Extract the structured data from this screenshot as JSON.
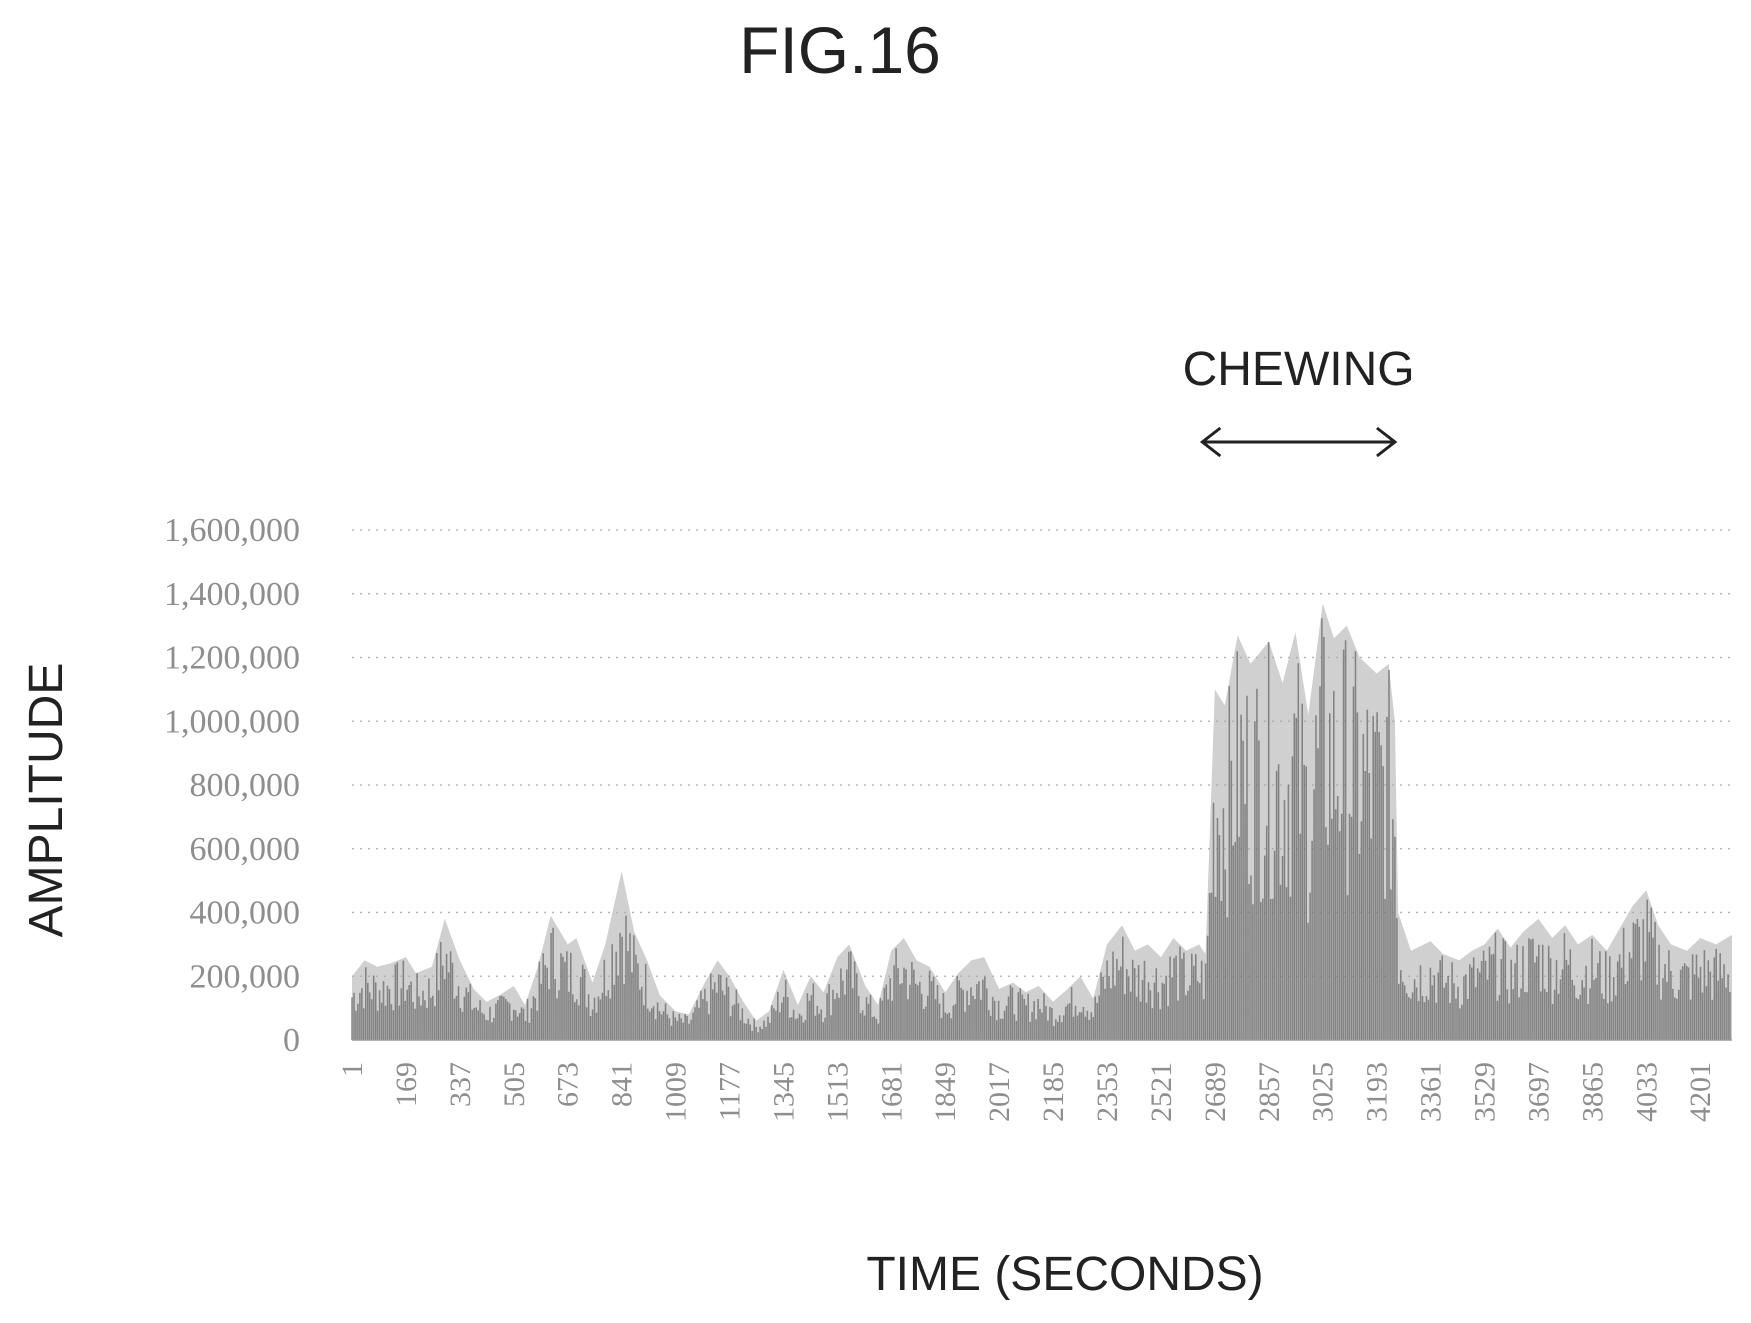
{
  "figure_label": "FIG.16",
  "chart_data": {
    "type": "area",
    "xlabel": "TIME (SECONDS)",
    "ylabel": "AMPLITUDE",
    "ylim": [
      0,
      1600000
    ],
    "yticks": [
      0,
      200000,
      400000,
      600000,
      800000,
      1000000,
      1200000,
      1400000,
      1600000
    ],
    "ytick_labels": [
      "0",
      "200,000",
      "400,000",
      "600,000",
      "800,000",
      "1,000,000",
      "1,200,000",
      "1,400,000",
      "1,600,000"
    ],
    "xticks": [
      1,
      169,
      337,
      505,
      673,
      841,
      1009,
      1177,
      1345,
      1513,
      1681,
      1849,
      2017,
      2185,
      2353,
      2521,
      2689,
      2857,
      3025,
      3193,
      3361,
      3529,
      3697,
      3865,
      4033,
      4201
    ],
    "xlim": [
      1,
      4300
    ],
    "grid": true,
    "legend": "none",
    "color": "#6b6b6b",
    "annotation": {
      "label": "CHEWING",
      "x_start": 2650,
      "x_end": 3250,
      "style": "double-arrow"
    },
    "series": [
      {
        "x": [
          1,
          40,
          80,
          120,
          169,
          200,
          250,
          290,
          337,
          380,
          420,
          460,
          505,
          540,
          580,
          620,
          673,
          700,
          750,
          790,
          841,
          880,
          920,
          960,
          1009,
          1050,
          1100,
          1140,
          1177,
          1220,
          1260,
          1300,
          1345,
          1390,
          1430,
          1470,
          1513,
          1550,
          1600,
          1640,
          1681,
          1720,
          1760,
          1800,
          1849,
          1890,
          1930,
          1970,
          2017,
          2060,
          2100,
          2140,
          2185,
          2230,
          2270,
          2310,
          2353,
          2400,
          2440,
          2480,
          2521,
          2560,
          2600,
          2640,
          2660,
          2689,
          2720,
          2760,
          2800,
          2857,
          2900,
          2940,
          2980,
          3025,
          3060,
          3100,
          3140,
          3193,
          3230,
          3250,
          3260,
          3300,
          3361,
          3400,
          3450,
          3490,
          3529,
          3570,
          3610,
          3650,
          3697,
          3740,
          3780,
          3820,
          3865,
          3910,
          3950,
          3990,
          4033,
          4070,
          4110,
          4160,
          4201,
          4250,
          4300
        ],
        "y": [
          200000,
          250000,
          230000,
          240000,
          260000,
          210000,
          230000,
          380000,
          250000,
          160000,
          120000,
          140000,
          170000,
          110000,
          230000,
          390000,
          300000,
          320000,
          180000,
          300000,
          530000,
          340000,
          250000,
          140000,
          90000,
          80000,
          180000,
          250000,
          200000,
          120000,
          60000,
          90000,
          220000,
          110000,
          200000,
          150000,
          260000,
          300000,
          170000,
          110000,
          280000,
          320000,
          250000,
          230000,
          150000,
          210000,
          250000,
          260000,
          160000,
          180000,
          150000,
          170000,
          120000,
          160000,
          200000,
          130000,
          300000,
          360000,
          280000,
          300000,
          260000,
          320000,
          280000,
          300000,
          270000,
          1100000,
          1050000,
          1270000,
          1180000,
          1250000,
          1120000,
          1280000,
          1020000,
          1370000,
          1260000,
          1300000,
          1200000,
          1150000,
          1180000,
          1000000,
          400000,
          280000,
          310000,
          270000,
          250000,
          280000,
          300000,
          350000,
          290000,
          340000,
          380000,
          320000,
          360000,
          300000,
          330000,
          280000,
          350000,
          420000,
          470000,
          360000,
          300000,
          280000,
          320000,
          300000,
          330000
        ]
      }
    ]
  }
}
